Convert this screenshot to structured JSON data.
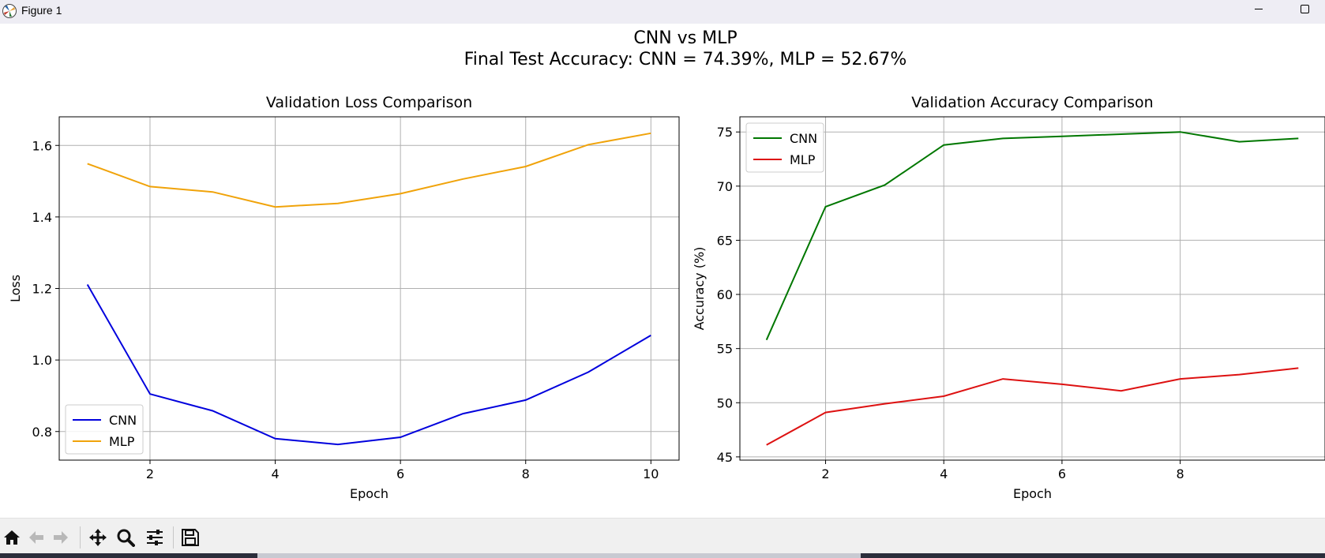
{
  "window": {
    "title": "Figure 1",
    "icon": "matplotlib-icon",
    "controls": [
      "minimize-icon",
      "maximize-icon"
    ]
  },
  "figure": {
    "suptitle_line1": "CNN vs MLP",
    "suptitle_line2": "Final Test Accuracy: CNN = 74.39%, MLP = 52.67%"
  },
  "chart_data": [
    {
      "type": "line",
      "title": "Validation Loss Comparison",
      "xlabel": "Epoch",
      "ylabel": "Loss",
      "xlim": [
        0.55,
        10.45
      ],
      "ylim": [
        0.72,
        1.68
      ],
      "xticks": [
        2,
        4,
        6,
        8,
        10
      ],
      "yticks": [
        0.8,
        1.0,
        1.2,
        1.4,
        1.6
      ],
      "grid": true,
      "legend": "lower-left",
      "x": [
        1,
        2,
        3,
        4,
        5,
        6,
        7,
        8,
        9,
        10
      ],
      "series": [
        {
          "name": "CNN",
          "color": "#0000dd",
          "values": [
            1.211,
            0.905,
            0.858,
            0.78,
            0.764,
            0.784,
            0.85,
            0.888,
            0.966,
            1.069
          ]
        },
        {
          "name": "MLP",
          "color": "#f0a30a",
          "values": [
            1.549,
            1.485,
            1.47,
            1.428,
            1.438,
            1.465,
            1.506,
            1.541,
            1.602,
            1.634
          ]
        }
      ]
    },
    {
      "type": "line",
      "title": "Validation Accuracy Comparison",
      "xlabel": "Epoch",
      "ylabel": "Accuracy (%)",
      "xlim": [
        0.55,
        10.45
      ],
      "ylim": [
        44.7,
        76.4
      ],
      "xticks": [
        2,
        4,
        6,
        8
      ],
      "yticks": [
        45,
        50,
        55,
        60,
        65,
        70,
        75
      ],
      "grid": true,
      "legend": "upper-left",
      "x": [
        1,
        2,
        3,
        4,
        5,
        6,
        7,
        8,
        9,
        10
      ],
      "series": [
        {
          "name": "CNN",
          "color": "#007700",
          "values": [
            55.8,
            68.1,
            70.1,
            73.8,
            74.4,
            74.6,
            74.8,
            75.0,
            74.1,
            74.4
          ]
        },
        {
          "name": "MLP",
          "color": "#dd1111",
          "values": [
            46.1,
            49.1,
            49.9,
            50.6,
            52.2,
            51.7,
            51.1,
            52.2,
            52.6,
            53.2
          ]
        }
      ]
    }
  ],
  "toolbar": {
    "buttons": [
      "home-icon",
      "back-icon",
      "forward-icon",
      "pan-icon",
      "zoom-icon",
      "configure-icon",
      "save-icon"
    ]
  }
}
